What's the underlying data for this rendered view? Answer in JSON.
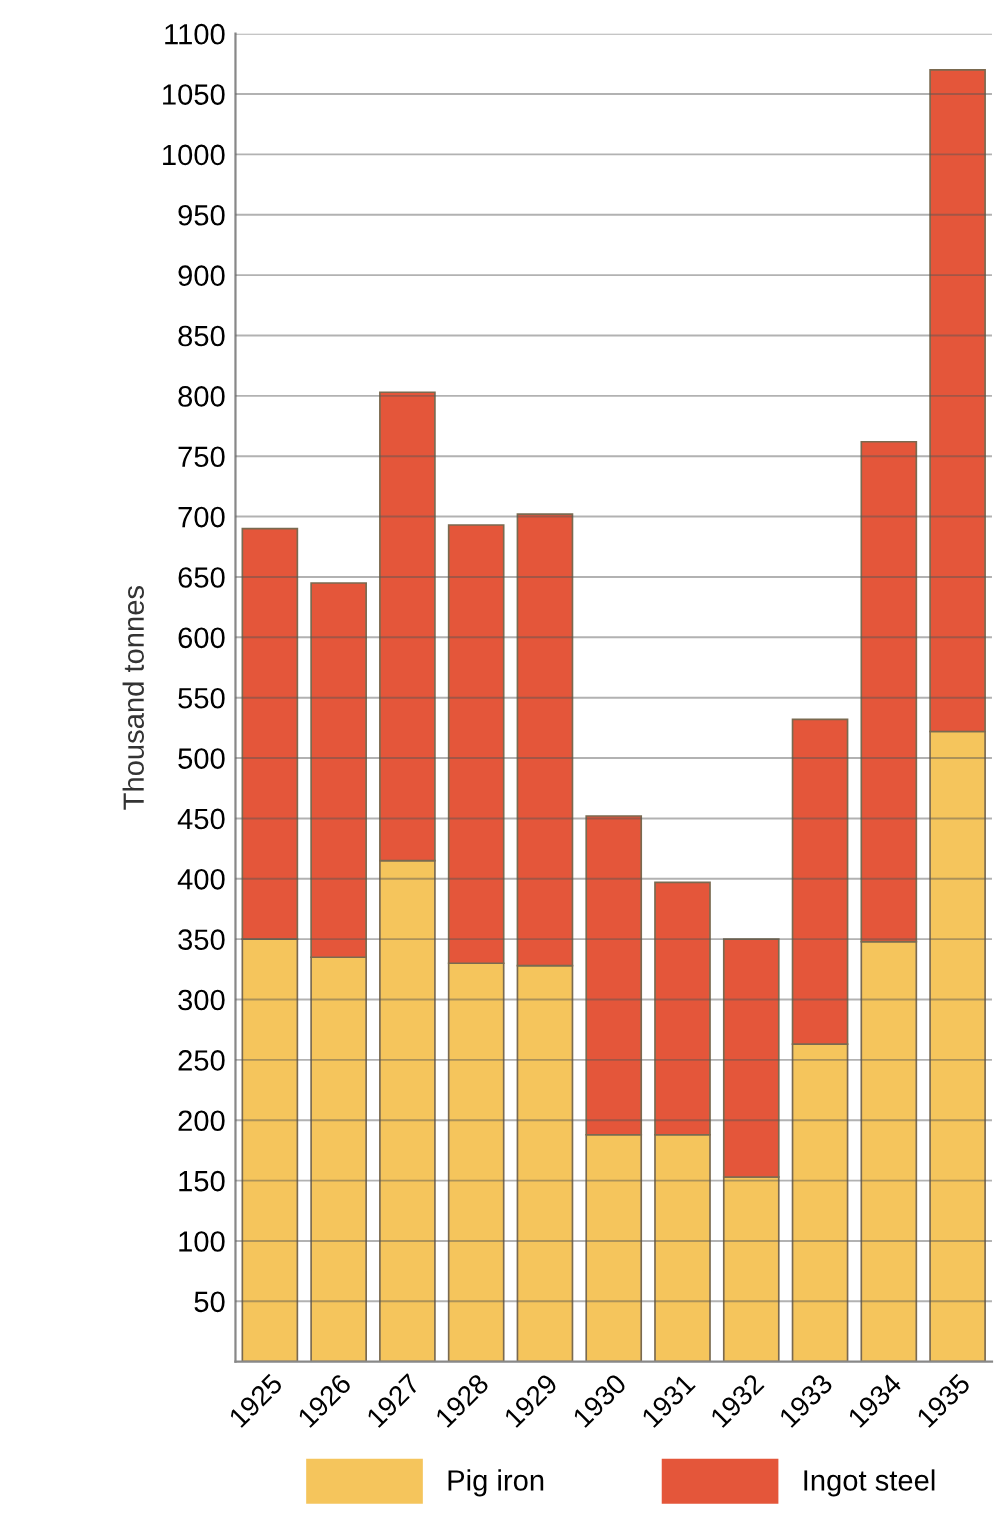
{
  "chart_data": {
    "type": "bar",
    "stacked": true,
    "ylabel": "Thousand tonnes",
    "categories": [
      "1925",
      "1926",
      "1927",
      "1928",
      "1929",
      "1930",
      "1931",
      "1932",
      "1933",
      "1934",
      "1935"
    ],
    "series": [
      {
        "name": "Pig iron",
        "color": "#f5c55c",
        "values": [
          350,
          335,
          415,
          330,
          328,
          188,
          188,
          153,
          263,
          348,
          522
        ]
      },
      {
        "name": "Ingot steel",
        "color": "#e4563a",
        "values": [
          340,
          310,
          388,
          363,
          374,
          264,
          209,
          197,
          269,
          414,
          548
        ]
      }
    ],
    "ylim": [
      0,
      1100
    ],
    "yticks": [
      50,
      100,
      150,
      200,
      250,
      300,
      350,
      400,
      450,
      500,
      550,
      600,
      650,
      700,
      750,
      800,
      850,
      900,
      950,
      1000,
      1050,
      1100
    ],
    "grid": "y",
    "legend": "bottom"
  }
}
